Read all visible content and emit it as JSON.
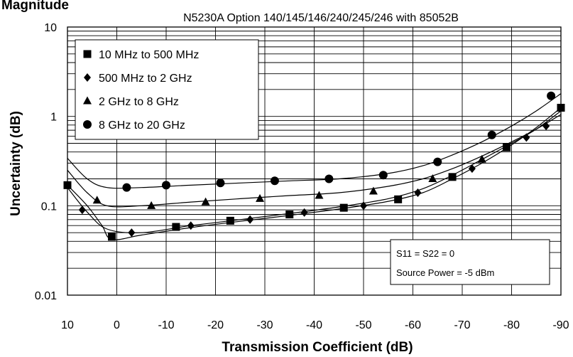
{
  "chart_data": {
    "type": "scatter",
    "heading": "Magnitude",
    "title": "N5230A Option 140/145/146/240/245/246 with 85052B",
    "xlabel": "Transmission Coefficient (dB)",
    "ylabel": "Uncertainty (dB)",
    "xlim": [
      10,
      -90
    ],
    "ylim": [
      0.01,
      10
    ],
    "yscale": "log",
    "grid": true,
    "legend_position": "top-left",
    "x_ticks": [
      10,
      0,
      -10,
      -20,
      -30,
      -40,
      -50,
      -60,
      -70,
      -80,
      -90
    ],
    "x_tick_labels": [
      "10",
      "0",
      "-10",
      "-20",
      "-30",
      "-40",
      "-50",
      "-60",
      "-70",
      "-80",
      "-90"
    ],
    "y_ticks": [
      10,
      1,
      0.1,
      0.01
    ],
    "y_tick_labels": [
      "10",
      "1",
      "0.1",
      "0.01"
    ],
    "series": [
      {
        "name": "10 MHz to 500 MHz",
        "marker": "square",
        "points": [
          [
            10,
            0.17
          ],
          [
            1,
            0.045
          ],
          [
            -12,
            0.058
          ],
          [
            -23,
            0.068
          ],
          [
            -35,
            0.08
          ],
          [
            -46,
            0.095
          ],
          [
            -57,
            0.118
          ],
          [
            -68,
            0.21
          ],
          [
            -79,
            0.45
          ],
          [
            -90,
            1.25
          ]
        ],
        "curve": [
          [
            10,
            0.17
          ],
          [
            6,
            0.1
          ],
          [
            3,
            0.06
          ],
          [
            1,
            0.042
          ],
          [
            -5,
            0.047
          ],
          [
            -15,
            0.057
          ],
          [
            -25,
            0.067
          ],
          [
            -35,
            0.078
          ],
          [
            -45,
            0.092
          ],
          [
            -55,
            0.112
          ],
          [
            -62,
            0.14
          ],
          [
            -68,
            0.2
          ],
          [
            -74,
            0.3
          ],
          [
            -80,
            0.48
          ],
          [
            -85,
            0.75
          ],
          [
            -90,
            1.25
          ]
        ]
      },
      {
        "name": "500 MHz to 2 GHz",
        "marker": "diamond",
        "points": [
          [
            7,
            0.09
          ],
          [
            -3,
            0.05
          ],
          [
            -15,
            0.06
          ],
          [
            -27,
            0.07
          ],
          [
            -38,
            0.084
          ],
          [
            -50,
            0.1
          ],
          [
            -61,
            0.14
          ],
          [
            -72,
            0.26
          ],
          [
            -83,
            0.58
          ],
          [
            -87,
            0.78
          ]
        ],
        "curve": [
          [
            10,
            0.16
          ],
          [
            6,
            0.085
          ],
          [
            2,
            0.055
          ],
          [
            -5,
            0.05
          ],
          [
            -15,
            0.06
          ],
          [
            -25,
            0.07
          ],
          [
            -35,
            0.082
          ],
          [
            -45,
            0.097
          ],
          [
            -55,
            0.12
          ],
          [
            -62,
            0.155
          ],
          [
            -68,
            0.22
          ],
          [
            -74,
            0.33
          ],
          [
            -80,
            0.5
          ],
          [
            -85,
            0.72
          ],
          [
            -90,
            1.15
          ]
        ]
      },
      {
        "name": "2 GHz to 8 GHz",
        "marker": "triangle",
        "points": [
          [
            4,
            0.115
          ],
          [
            -7,
            0.1
          ],
          [
            -18,
            0.11
          ],
          [
            -29,
            0.12
          ],
          [
            -41,
            0.13
          ],
          [
            -52,
            0.145
          ],
          [
            -64,
            0.2
          ],
          [
            -74,
            0.33
          ],
          [
            -79,
            0.45
          ]
        ],
        "curve": [
          [
            10,
            0.25
          ],
          [
            6,
            0.14
          ],
          [
            2,
            0.1
          ],
          [
            -5,
            0.1
          ],
          [
            -15,
            0.11
          ],
          [
            -25,
            0.12
          ],
          [
            -35,
            0.13
          ],
          [
            -45,
            0.14
          ],
          [
            -55,
            0.165
          ],
          [
            -62,
            0.2
          ],
          [
            -68,
            0.26
          ],
          [
            -74,
            0.36
          ],
          [
            -80,
            0.52
          ],
          [
            -85,
            0.72
          ],
          [
            -90,
            1.05
          ]
        ]
      },
      {
        "name": "8 GHz to 20 GHz",
        "marker": "circle",
        "points": [
          [
            -2,
            0.16
          ],
          [
            -10,
            0.17
          ],
          [
            -21,
            0.18
          ],
          [
            -32,
            0.19
          ],
          [
            -43,
            0.2
          ],
          [
            -54,
            0.22
          ],
          [
            -65,
            0.31
          ],
          [
            -76,
            0.62
          ],
          [
            -88,
            1.7
          ]
        ],
        "curve": [
          [
            10,
            0.34
          ],
          [
            6,
            0.2
          ],
          [
            2,
            0.16
          ],
          [
            -5,
            0.16
          ],
          [
            -15,
            0.17
          ],
          [
            -25,
            0.18
          ],
          [
            -35,
            0.19
          ],
          [
            -45,
            0.2
          ],
          [
            -55,
            0.23
          ],
          [
            -62,
            0.28
          ],
          [
            -68,
            0.37
          ],
          [
            -74,
            0.52
          ],
          [
            -80,
            0.78
          ],
          [
            -85,
            1.15
          ],
          [
            -90,
            1.8
          ]
        ]
      }
    ],
    "annotations": [
      "S11 = S22 = 0",
      "Source Power = -5 dBm"
    ]
  }
}
